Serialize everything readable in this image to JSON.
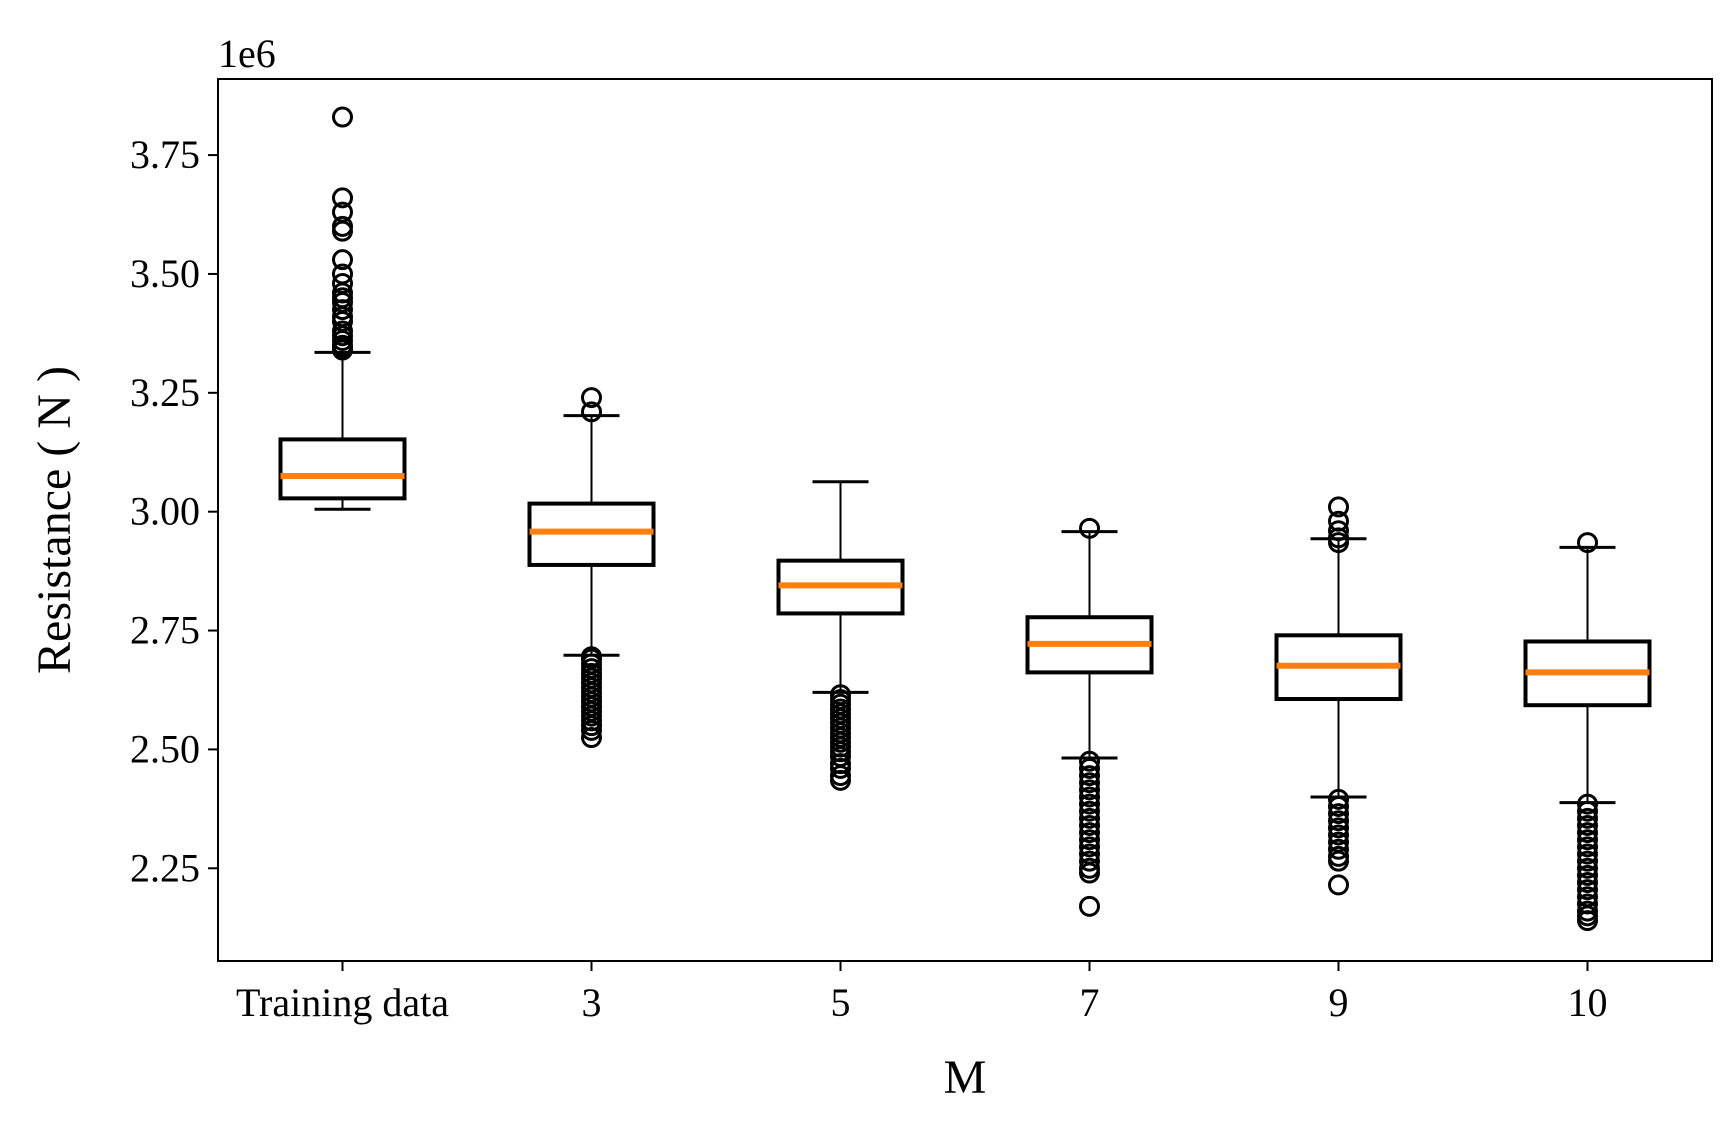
{
  "chart_data": {
    "type": "box",
    "title": "",
    "xlabel": "M",
    "ylabel": "Resistance ( N )",
    "y_offset_label": "1e6",
    "y_scale": 1000000,
    "ylim": [
      2.055,
      3.91
    ],
    "yticks": [
      2.25,
      2.5,
      2.75,
      3.0,
      3.25,
      3.5,
      3.75
    ],
    "ytick_labels": [
      "2.25",
      "2.50",
      "2.75",
      "3.00",
      "3.25",
      "3.50",
      "3.75"
    ],
    "categories": [
      "Training data",
      "3",
      "5",
      "7",
      "9",
      "10"
    ],
    "colors": {
      "box": "#000000",
      "median": "#ff7f0e",
      "outlier": "#000000"
    },
    "boxes": [
      {
        "label": "Training data",
        "whisker_low": 3.005,
        "q1": 3.028,
        "median": 3.075,
        "q3": 3.152,
        "whisker_high": 3.335,
        "outliers": [
          3.34,
          3.345,
          3.35,
          3.36,
          3.37,
          3.38,
          3.4,
          3.41,
          3.425,
          3.44,
          3.45,
          3.46,
          3.48,
          3.5,
          3.53,
          3.59,
          3.6,
          3.63,
          3.66,
          3.83
        ]
      },
      {
        "label": "3",
        "whisker_low": 2.698,
        "q1": 2.888,
        "median": 2.958,
        "q3": 3.017,
        "whisker_high": 3.202,
        "outliers": [
          3.21,
          3.24,
          2.695,
          2.69,
          2.68,
          2.67,
          2.66,
          2.65,
          2.64,
          2.63,
          2.62,
          2.61,
          2.6,
          2.59,
          2.58,
          2.57,
          2.56,
          2.55,
          2.54,
          2.525
        ]
      },
      {
        "label": "5",
        "whisker_low": 2.62,
        "q1": 2.786,
        "median": 2.845,
        "q3": 2.897,
        "whisker_high": 3.063,
        "outliers": [
          2.615,
          2.605,
          2.595,
          2.585,
          2.575,
          2.565,
          2.555,
          2.545,
          2.535,
          2.525,
          2.515,
          2.505,
          2.495,
          2.485,
          2.47,
          2.46,
          2.445,
          2.435
        ]
      },
      {
        "label": "7",
        "whisker_low": 2.482,
        "q1": 2.662,
        "median": 2.722,
        "q3": 2.778,
        "whisker_high": 2.958,
        "outliers": [
          2.965,
          2.475,
          2.46,
          2.445,
          2.43,
          2.415,
          2.4,
          2.385,
          2.37,
          2.355,
          2.34,
          2.325,
          2.31,
          2.295,
          2.28,
          2.265,
          2.25,
          2.24,
          2.17
        ]
      },
      {
        "label": "9",
        "whisker_low": 2.4,
        "q1": 2.606,
        "median": 2.676,
        "q3": 2.74,
        "whisker_high": 2.943,
        "outliers": [
          2.935,
          2.945,
          2.96,
          2.98,
          3.01,
          2.395,
          2.38,
          2.365,
          2.35,
          2.335,
          2.32,
          2.305,
          2.29,
          2.275,
          2.265,
          2.215
        ]
      },
      {
        "label": "10",
        "whisker_low": 2.388,
        "q1": 2.593,
        "median": 2.662,
        "q3": 2.727,
        "whisker_high": 2.925,
        "outliers": [
          2.935,
          2.385,
          2.37,
          2.355,
          2.34,
          2.325,
          2.31,
          2.295,
          2.28,
          2.265,
          2.25,
          2.235,
          2.22,
          2.205,
          2.19,
          2.175,
          2.16,
          2.15,
          2.14
        ]
      }
    ]
  }
}
